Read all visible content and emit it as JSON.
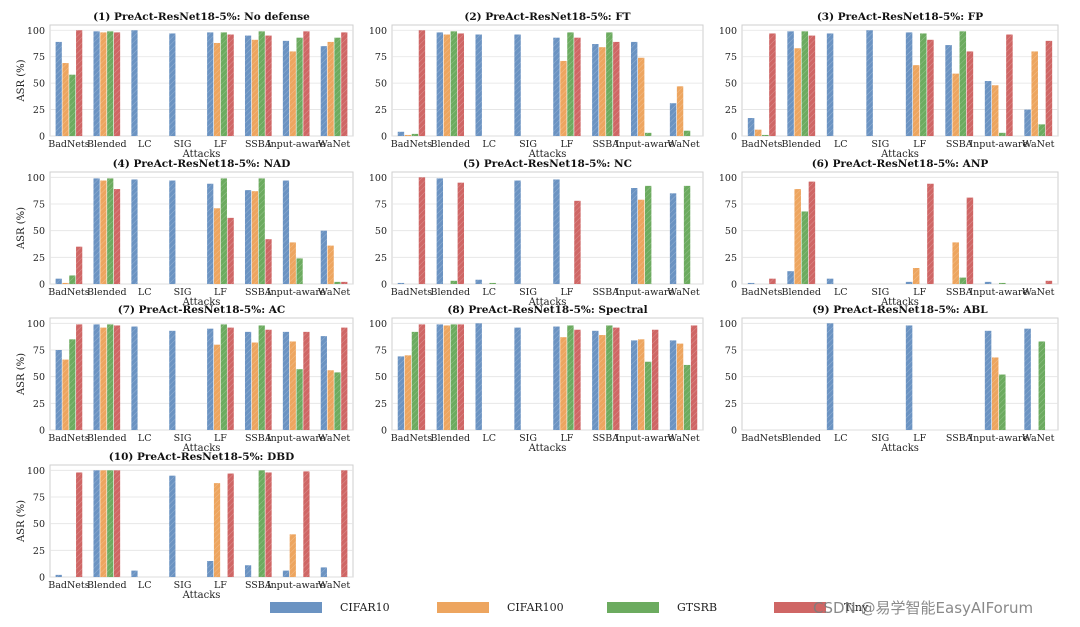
{
  "colors": {
    "CIFAR10": "#6b93c2",
    "CIFAR100": "#eda55f",
    "GTSRB": "#6cab5f",
    "Tiny": "#cf6665"
  },
  "legend": {
    "items": [
      "CIFAR10",
      "CIFAR100",
      "GTSRB",
      "Tiny"
    ]
  },
  "watermark": "CSDN @易学智能EasyAIForum",
  "chart_data": [
    {
      "type": "bar",
      "title": "(1) PreAct-ResNet18-5%: No defense",
      "xlabel": "Attacks",
      "ylabel": "ASR (%)",
      "ylim": [
        0,
        105
      ],
      "yticks": [
        "0",
        "25",
        "50",
        "75",
        "100"
      ],
      "categories": [
        "BadNets",
        "Blended",
        "LC",
        "SIG",
        "LF",
        "SSBA",
        "Input-aware",
        "WaNet"
      ],
      "series": [
        {
          "name": "CIFAR10",
          "values": [
            89,
            99,
            100,
            97,
            98,
            95,
            90,
            85
          ]
        },
        {
          "name": "CIFAR100",
          "values": [
            69,
            98,
            0,
            0,
            88,
            91,
            80,
            89
          ]
        },
        {
          "name": "GTSRB",
          "values": [
            58,
            99,
            0,
            0,
            98,
            99,
            93,
            93
          ]
        },
        {
          "name": "Tiny",
          "values": [
            100,
            98,
            0,
            0,
            96,
            95,
            99,
            98
          ]
        }
      ]
    },
    {
      "type": "bar",
      "title": "(2) PreAct-ResNet18-5%: FT",
      "xlabel": "Attacks",
      "ylabel": "",
      "ylim": [
        0,
        105
      ],
      "yticks": [
        "0",
        "25",
        "50",
        "75",
        "100"
      ],
      "categories": [
        "BadNets",
        "Blended",
        "LC",
        "SIG",
        "LF",
        "SSBA",
        "Input-aware",
        "WaNet"
      ],
      "series": [
        {
          "name": "CIFAR10",
          "values": [
            4,
            98,
            96,
            96,
            93,
            87,
            89,
            31
          ]
        },
        {
          "name": "CIFAR100",
          "values": [
            1,
            96,
            0,
            0,
            71,
            84,
            74,
            47
          ]
        },
        {
          "name": "GTSRB",
          "values": [
            2,
            99,
            0,
            0,
            98,
            98,
            3,
            5
          ]
        },
        {
          "name": "Tiny",
          "values": [
            100,
            97,
            0,
            0,
            93,
            89,
            0,
            0
          ]
        }
      ]
    },
    {
      "type": "bar",
      "title": "(3) PreAct-ResNet18-5%: FP",
      "xlabel": "Attacks",
      "ylabel": "",
      "ylim": [
        0,
        105
      ],
      "yticks": [
        "0",
        "25",
        "50",
        "75",
        "100"
      ],
      "categories": [
        "BadNets",
        "Blended",
        "LC",
        "SIG",
        "LF",
        "SSBA",
        "Input-aware",
        "WaNet"
      ],
      "series": [
        {
          "name": "CIFAR10",
          "values": [
            17,
            99,
            97,
            100,
            98,
            86,
            52,
            25
          ]
        },
        {
          "name": "CIFAR100",
          "values": [
            6,
            83,
            0,
            0,
            67,
            59,
            48,
            80
          ]
        },
        {
          "name": "GTSRB",
          "values": [
            1,
            99,
            0,
            0,
            97,
            99,
            3,
            11
          ]
        },
        {
          "name": "Tiny",
          "values": [
            97,
            95,
            0,
            0,
            91,
            80,
            96,
            90
          ]
        }
      ]
    },
    {
      "type": "bar",
      "title": "(4) PreAct-ResNet18-5%: NAD",
      "xlabel": "Attacks",
      "ylabel": "ASR (%)",
      "ylim": [
        0,
        105
      ],
      "yticks": [
        "0",
        "25",
        "50",
        "75",
        "100"
      ],
      "categories": [
        "BadNets",
        "Blended",
        "LC",
        "SIG",
        "LF",
        "SSBA",
        "Input-aware",
        "WaNet"
      ],
      "series": [
        {
          "name": "CIFAR10",
          "values": [
            5,
            99,
            98,
            97,
            94,
            88,
            97,
            50
          ]
        },
        {
          "name": "CIFAR100",
          "values": [
            1,
            97,
            0,
            0,
            71,
            87,
            39,
            36
          ]
        },
        {
          "name": "GTSRB",
          "values": [
            8,
            99,
            0,
            0,
            99,
            99,
            24,
            2
          ]
        },
        {
          "name": "Tiny",
          "values": [
            35,
            89,
            0,
            0,
            62,
            42,
            0,
            2
          ]
        }
      ]
    },
    {
      "type": "bar",
      "title": "(5) PreAct-ResNet18-5%: NC",
      "xlabel": "Attacks",
      "ylabel": "",
      "ylim": [
        0,
        105
      ],
      "yticks": [
        "0",
        "25",
        "50",
        "75",
        "100"
      ],
      "categories": [
        "BadNets",
        "Blended",
        "LC",
        "SIG",
        "LF",
        "SSBA",
        "Input-aware",
        "WaNet"
      ],
      "series": [
        {
          "name": "CIFAR10",
          "values": [
            1,
            99,
            4,
            97,
            98,
            0,
            90,
            85
          ]
        },
        {
          "name": "CIFAR100",
          "values": [
            0,
            0,
            0,
            0,
            0,
            0,
            79,
            0
          ]
        },
        {
          "name": "GTSRB",
          "values": [
            0,
            3,
            1,
            0,
            0,
            0,
            92,
            92
          ]
        },
        {
          "name": "Tiny",
          "values": [
            100,
            95,
            0,
            0,
            78,
            0,
            0,
            0
          ]
        }
      ]
    },
    {
      "type": "bar",
      "title": "(6) PreAct-ResNet18-5%: ANP",
      "xlabel": "Attacks",
      "ylabel": "",
      "ylim": [
        0,
        105
      ],
      "yticks": [
        "0",
        "25",
        "50",
        "75",
        "100"
      ],
      "categories": [
        "BadNets",
        "Blended",
        "LC",
        "SIG",
        "LF",
        "SSBA",
        "Input-aware",
        "WaNet"
      ],
      "series": [
        {
          "name": "CIFAR10",
          "values": [
            1,
            12,
            5,
            0,
            2,
            0,
            2,
            0
          ]
        },
        {
          "name": "CIFAR100",
          "values": [
            0,
            89,
            0,
            0,
            15,
            39,
            0,
            0
          ]
        },
        {
          "name": "GTSRB",
          "values": [
            0,
            68,
            0,
            0,
            0,
            6,
            1,
            0
          ]
        },
        {
          "name": "Tiny",
          "values": [
            5,
            96,
            0,
            0,
            94,
            81,
            0,
            3
          ]
        }
      ]
    },
    {
      "type": "bar",
      "title": "(7) PreAct-ResNet18-5%: AC",
      "xlabel": "Attacks",
      "ylabel": "ASR (%)",
      "ylim": [
        0,
        105
      ],
      "yticks": [
        "0",
        "25",
        "50",
        "75",
        "100"
      ],
      "categories": [
        "BadNets",
        "Blended",
        "LC",
        "SIG",
        "LF",
        "SSBA",
        "Input-aware",
        "WaNet"
      ],
      "series": [
        {
          "name": "CIFAR10",
          "values": [
            75,
            99,
            97,
            93,
            95,
            92,
            92,
            88
          ]
        },
        {
          "name": "CIFAR100",
          "values": [
            66,
            96,
            0,
            0,
            80,
            82,
            83,
            56
          ]
        },
        {
          "name": "GTSRB",
          "values": [
            85,
            99,
            0,
            0,
            99,
            98,
            57,
            54
          ]
        },
        {
          "name": "Tiny",
          "values": [
            99,
            98,
            0,
            0,
            96,
            94,
            92,
            96
          ]
        }
      ]
    },
    {
      "type": "bar",
      "title": "(8) PreAct-ResNet18-5%: Spectral",
      "xlabel": "Attacks",
      "ylabel": "",
      "ylim": [
        0,
        105
      ],
      "yticks": [
        "0",
        "25",
        "50",
        "75",
        "100"
      ],
      "categories": [
        "BadNets",
        "Blended",
        "LC",
        "SIG",
        "LF",
        "SSBA",
        "Input-aware",
        "WaNet"
      ],
      "series": [
        {
          "name": "CIFAR10",
          "values": [
            69,
            99,
            100,
            96,
            97,
            93,
            84,
            84
          ]
        },
        {
          "name": "CIFAR100",
          "values": [
            70,
            98,
            0,
            0,
            87,
            89,
            85,
            81
          ]
        },
        {
          "name": "GTSRB",
          "values": [
            92,
            99,
            0,
            0,
            98,
            98,
            64,
            61
          ]
        },
        {
          "name": "Tiny",
          "values": [
            99,
            99,
            0,
            0,
            94,
            96,
            94,
            98
          ]
        }
      ]
    },
    {
      "type": "bar",
      "title": "(9) PreAct-ResNet18-5%: ABL",
      "xlabel": "Attacks",
      "ylabel": "",
      "ylim": [
        0,
        105
      ],
      "yticks": [
        "0",
        "25",
        "50",
        "75",
        "100"
      ],
      "categories": [
        "BadNets",
        "Blended",
        "LC",
        "SIG",
        "LF",
        "SSBA",
        "Input-aware",
        "WaNet"
      ],
      "series": [
        {
          "name": "CIFAR10",
          "values": [
            0,
            0,
            100,
            0,
            98,
            0,
            93,
            95
          ]
        },
        {
          "name": "CIFAR100",
          "values": [
            0,
            0,
            0,
            0,
            0,
            0,
            68,
            0
          ]
        },
        {
          "name": "GTSRB",
          "values": [
            0,
            0,
            0,
            0,
            0,
            0,
            52,
            83
          ]
        },
        {
          "name": "Tiny",
          "values": [
            0,
            0,
            0,
            0,
            0,
            0,
            0,
            0
          ]
        }
      ]
    },
    {
      "type": "bar",
      "title": "(10) PreAct-ResNet18-5%: DBD",
      "xlabel": "Attacks",
      "ylabel": "ASR (%)",
      "ylim": [
        0,
        105
      ],
      "yticks": [
        "0",
        "25",
        "50",
        "75",
        "100"
      ],
      "categories": [
        "BadNets",
        "Blended",
        "LC",
        "SIG",
        "LF",
        "SSBA",
        "Input-aware",
        "WaNet"
      ],
      "series": [
        {
          "name": "CIFAR10",
          "values": [
            2,
            100,
            6,
            95,
            15,
            11,
            6,
            9
          ]
        },
        {
          "name": "CIFAR100",
          "values": [
            0,
            100,
            0,
            0,
            88,
            0,
            40,
            0
          ]
        },
        {
          "name": "GTSRB",
          "values": [
            0,
            100,
            0,
            0,
            0,
            100,
            0,
            0
          ]
        },
        {
          "name": "Tiny",
          "values": [
            98,
            100,
            0,
            0,
            97,
            98,
            99,
            100
          ]
        }
      ]
    }
  ]
}
